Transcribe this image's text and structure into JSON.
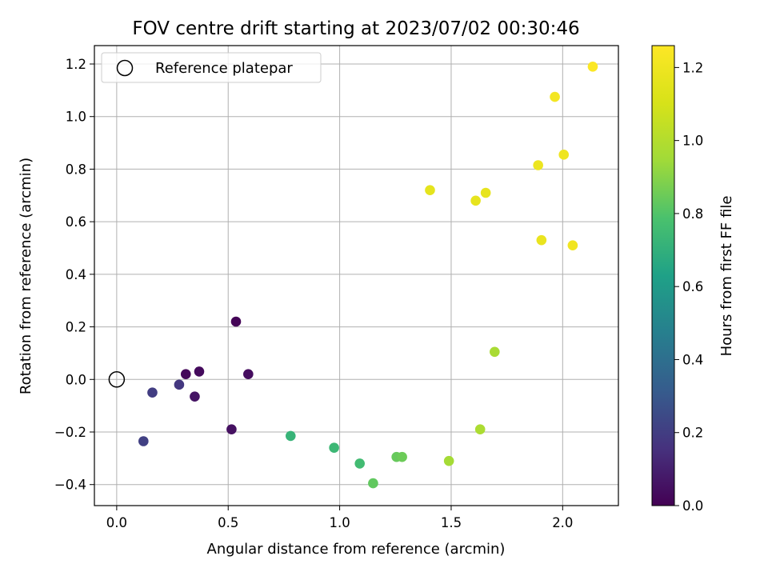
{
  "chart_data": {
    "type": "scatter",
    "title": "FOV centre drift starting at 2023/07/02 00:30:46",
    "xlabel": "Angular distance from reference (arcmin)",
    "ylabel": "Rotation from reference (arcmin)",
    "xlim": [
      -0.1,
      2.25
    ],
    "ylim": [
      -0.48,
      1.27
    ],
    "x_ticks": [
      0.0,
      0.5,
      1.0,
      1.5,
      2.0
    ],
    "x_tick_labels": [
      "0.0",
      "0.5",
      "1.0",
      "1.5",
      "2.0"
    ],
    "y_ticks": [
      -0.4,
      -0.2,
      0.0,
      0.2,
      0.4,
      0.6,
      0.8,
      1.0,
      1.2
    ],
    "y_tick_labels": [
      "−0.4",
      "−0.2",
      "0.0",
      "0.2",
      "0.4",
      "0.6",
      "0.8",
      "1.0",
      "1.2"
    ],
    "grid": true,
    "legend": {
      "position": "top-left",
      "entries": [
        "Reference platepar"
      ]
    },
    "reference_point": {
      "x": 0.0,
      "y": 0.0,
      "marker": "open-circle"
    },
    "colorbar": {
      "label": "Hours from first FF file",
      "colormap": "viridis",
      "range": [
        0.0,
        1.26
      ],
      "ticks": [
        0.0,
        0.2,
        0.4,
        0.6,
        0.8,
        1.0,
        1.2
      ],
      "tick_labels": [
        "0.0",
        "0.2",
        "0.4",
        "0.6",
        "0.8",
        "1.0",
        "1.2"
      ]
    },
    "points": [
      {
        "x": 0.31,
        "y": 0.02,
        "c": 0.02
      },
      {
        "x": 0.37,
        "y": 0.03,
        "c": 0.03
      },
      {
        "x": 0.35,
        "y": -0.065,
        "c": 0.06
      },
      {
        "x": 0.535,
        "y": 0.22,
        "c": 0.01
      },
      {
        "x": 0.59,
        "y": 0.02,
        "c": 0.04
      },
      {
        "x": 0.515,
        "y": -0.19,
        "c": 0.05
      },
      {
        "x": 0.16,
        "y": -0.05,
        "c": 0.2
      },
      {
        "x": 0.28,
        "y": -0.02,
        "c": 0.18
      },
      {
        "x": 0.12,
        "y": -0.235,
        "c": 0.21
      },
      {
        "x": 0.78,
        "y": -0.215,
        "c": 0.72
      },
      {
        "x": 0.975,
        "y": -0.26,
        "c": 0.74
      },
      {
        "x": 1.09,
        "y": -0.32,
        "c": 0.76
      },
      {
        "x": 1.15,
        "y": -0.395,
        "c": 0.83
      },
      {
        "x": 1.255,
        "y": -0.295,
        "c": 0.84
      },
      {
        "x": 1.28,
        "y": -0.295,
        "c": 0.85
      },
      {
        "x": 1.49,
        "y": -0.31,
        "c": 0.96
      },
      {
        "x": 1.63,
        "y": -0.19,
        "c": 0.98
      },
      {
        "x": 1.695,
        "y": 0.105,
        "c": 0.97
      },
      {
        "x": 1.405,
        "y": 0.72,
        "c": 1.16
      },
      {
        "x": 1.61,
        "y": 0.68,
        "c": 1.17
      },
      {
        "x": 1.655,
        "y": 0.71,
        "c": 1.17
      },
      {
        "x": 1.89,
        "y": 0.815,
        "c": 1.19
      },
      {
        "x": 1.905,
        "y": 0.53,
        "c": 1.18
      },
      {
        "x": 2.005,
        "y": 0.855,
        "c": 1.2
      },
      {
        "x": 1.965,
        "y": 1.075,
        "c": 1.22
      },
      {
        "x": 2.045,
        "y": 0.51,
        "c": 1.21
      },
      {
        "x": 2.135,
        "y": 1.19,
        "c": 1.25
      }
    ]
  }
}
